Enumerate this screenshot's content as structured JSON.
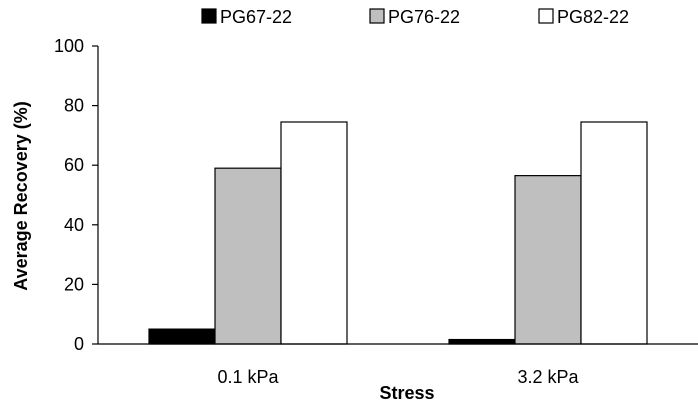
{
  "chart_data": {
    "type": "bar",
    "title": "",
    "xlabel": "Stress",
    "ylabel": "Average Recovery (%)",
    "ylim": [
      0,
      100
    ],
    "yticks": [
      0,
      20,
      40,
      60,
      80,
      100
    ],
    "categories": [
      "0.1 kPa",
      "3.2 kPa"
    ],
    "series": [
      {
        "name": "PG67-22",
        "color": "#000000",
        "values": [
          5,
          1.5
        ]
      },
      {
        "name": "PG76-22",
        "color": "#bfbfbf",
        "values": [
          59,
          56.5
        ]
      },
      {
        "name": "PG82-22",
        "color": "#ffffff",
        "values": [
          74.5,
          74.5
        ]
      }
    ],
    "legend_position": "top",
    "grid": false
  }
}
